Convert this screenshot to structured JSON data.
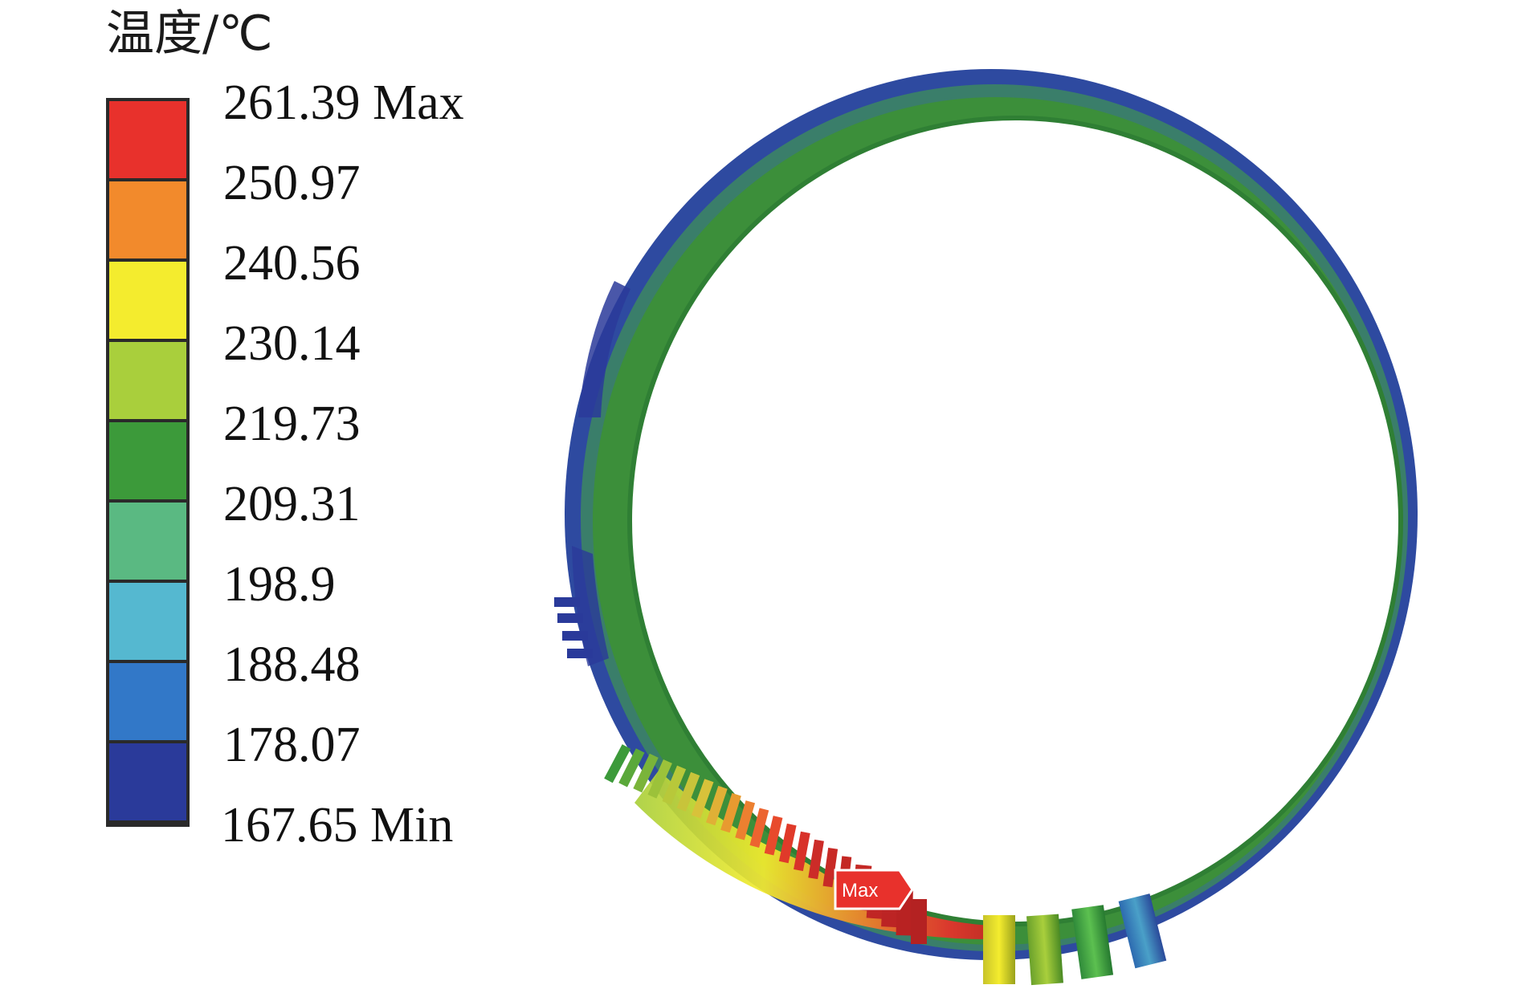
{
  "legend": {
    "title": "温度/℃",
    "labels": [
      "261.39 Max",
      "250.97",
      "240.56",
      "230.14",
      "219.73",
      "209.31",
      "198.9",
      "188.48",
      "178.07",
      "167.65 Min"
    ],
    "colors": [
      "#e8312c",
      "#f28a2c",
      "#f4ec2e",
      "#a9cf3c",
      "#3c9a3a",
      "#5ab982",
      "#55b8d0",
      "#3278c8",
      "#2a3a9a"
    ],
    "frame_color": "#2a2a2a"
  },
  "chart_data": {
    "type": "heatmap",
    "quantity": "温度/℃",
    "min": 167.65,
    "max": 261.39,
    "levels": [
      167.65,
      178.07,
      188.48,
      198.9,
      209.31,
      219.73,
      230.14,
      240.56,
      250.97,
      261.39
    ]
  },
  "model": {
    "max_tag": "Max",
    "ring_fill": "#3c8f3a",
    "outer_rim": "#2e4aa0",
    "mid_rim": "#3a7e6a"
  }
}
